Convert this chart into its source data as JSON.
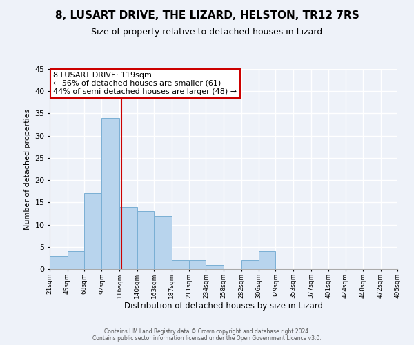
{
  "title": "8, LUSART DRIVE, THE LIZARD, HELSTON, TR12 7RS",
  "subtitle": "Size of property relative to detached houses in Lizard",
  "xlabel": "Distribution of detached houses by size in Lizard",
  "ylabel": "Number of detached properties",
  "bin_edges": [
    21,
    45,
    68,
    92,
    116,
    140,
    163,
    187,
    211,
    234,
    258,
    282,
    306,
    329,
    353,
    377,
    401,
    424,
    448,
    472,
    495
  ],
  "counts": [
    3,
    4,
    17,
    34,
    14,
    13,
    12,
    2,
    2,
    1,
    0,
    2,
    4,
    0,
    0,
    0,
    0,
    0,
    0,
    0
  ],
  "bar_color": "#b8d4ed",
  "bar_edge_color": "#7aafd4",
  "property_size": 119,
  "vline_color": "#cc0000",
  "annotation_line1": "8 LUSART DRIVE: 119sqm",
  "annotation_line2": "← 56% of detached houses are smaller (61)",
  "annotation_line3": "44% of semi-detached houses are larger (48) →",
  "annotation_box_color": "#ffffff",
  "annotation_box_edge_color": "#cc0000",
  "ylim": [
    0,
    45
  ],
  "yticks": [
    0,
    5,
    10,
    15,
    20,
    25,
    30,
    35,
    40,
    45
  ],
  "footer_line1": "Contains HM Land Registry data © Crown copyright and database right 2024.",
  "footer_line2": "Contains public sector information licensed under the Open Government Licence v3.0.",
  "bg_color": "#eef2f9",
  "grid_color": "#ffffff",
  "tick_labels": [
    "21sqm",
    "45sqm",
    "68sqm",
    "92sqm",
    "116sqm",
    "140sqm",
    "163sqm",
    "187sqm",
    "211sqm",
    "234sqm",
    "258sqm",
    "282sqm",
    "306sqm",
    "329sqm",
    "353sqm",
    "377sqm",
    "401sqm",
    "424sqm",
    "448sqm",
    "472sqm",
    "495sqm"
  ]
}
